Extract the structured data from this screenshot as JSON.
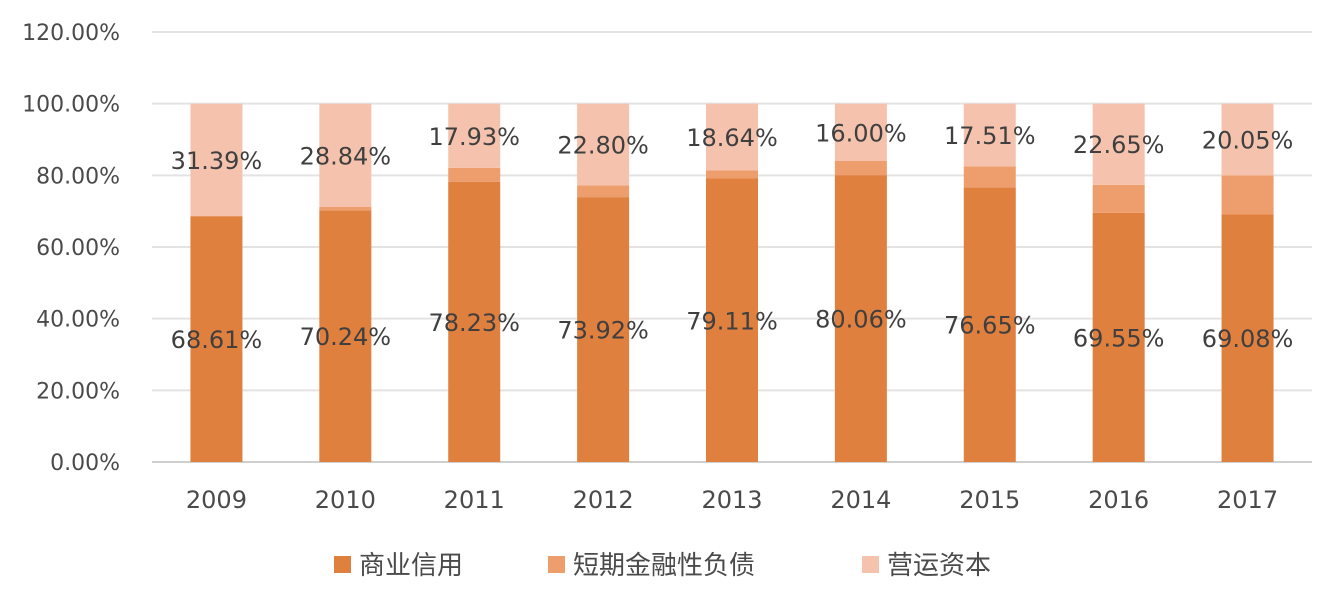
{
  "chart_data": {
    "type": "bar",
    "stacked": true,
    "categories": [
      "2009",
      "2010",
      "2011",
      "2012",
      "2013",
      "2014",
      "2015",
      "2016",
      "2017"
    ],
    "series": [
      {
        "name": "商业信用",
        "color": "#e0803f",
        "values": [
          0.6861,
          0.7024,
          0.7823,
          0.7392,
          0.7911,
          0.8006,
          0.7665,
          0.6955,
          0.6908
        ],
        "labels": [
          "68.61%",
          "70.24%",
          "78.23%",
          "73.92%",
          "79.11%",
          "80.06%",
          "76.65%",
          "69.55%",
          "69.08%"
        ]
      },
      {
        "name": "短期金融性负债",
        "color": "#ee9e6c",
        "values": [
          0.0,
          0.0092,
          0.0384,
          0.0328,
          0.0225,
          0.0394,
          0.0584,
          0.078,
          0.1087
        ],
        "labels": []
      },
      {
        "name": "营运资本",
        "color": "#f5c3ad",
        "values": [
          0.3139,
          0.2884,
          0.1793,
          0.228,
          0.1864,
          0.16,
          0.1751,
          0.2265,
          0.2005
        ],
        "labels": [
          "31.39%",
          "28.84%",
          "17.93%",
          "22.80%",
          "18.64%",
          "16.00%",
          "17.51%",
          "22.65%",
          "20.05%"
        ]
      }
    ],
    "y_ticks": [
      "0.00%",
      "20.00%",
      "40.00%",
      "60.00%",
      "80.00%",
      "100.00%",
      "120.00%"
    ],
    "ylim": [
      0,
      1.2
    ],
    "grid": true,
    "legend_position": "bottom",
    "title": "",
    "xlabel": "",
    "ylabel": ""
  }
}
